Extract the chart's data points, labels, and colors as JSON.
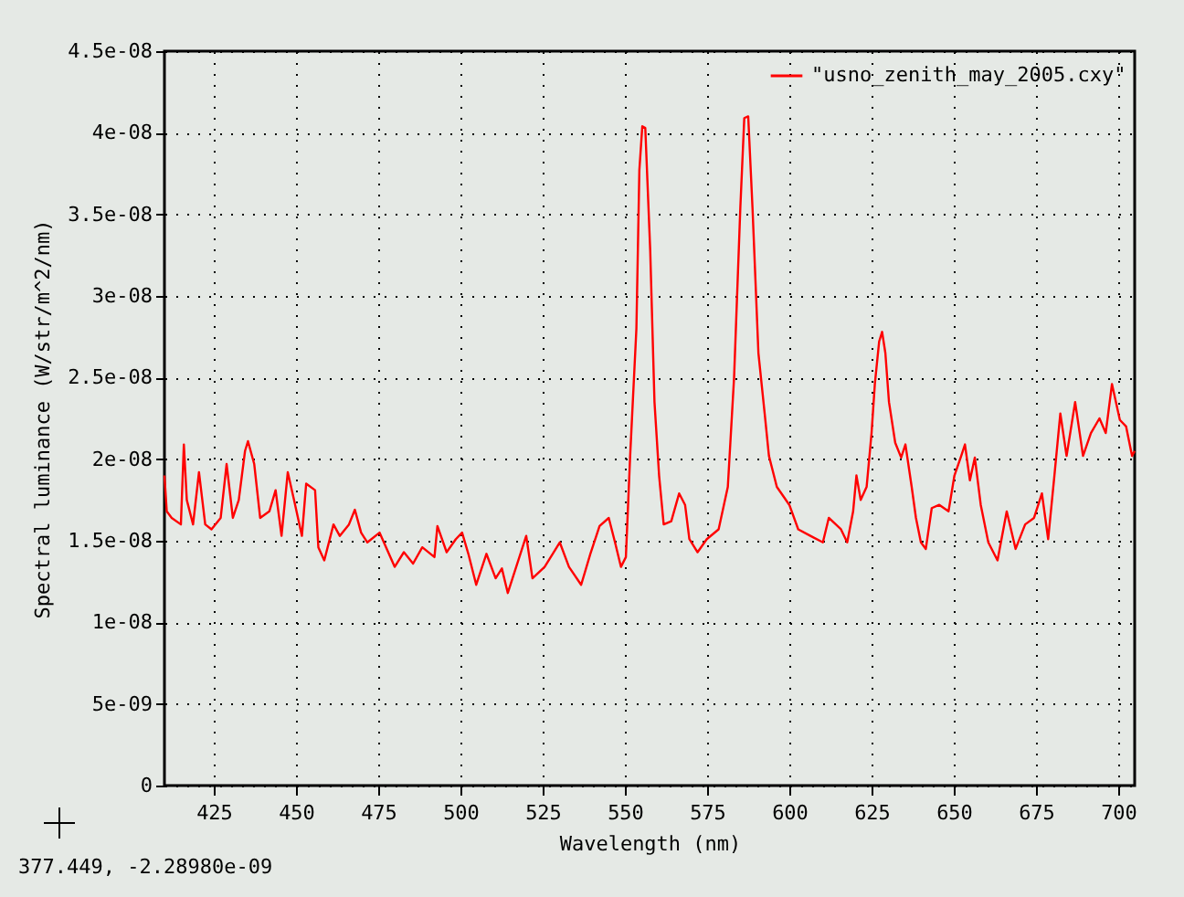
{
  "chart_data": {
    "type": "line",
    "xlabel": "Wavelength (nm)",
    "ylabel": "Spectral luminance (W/str/m^2/nm)",
    "annotations": [
      "377.449, -2.28980e-09"
    ],
    "x": [
      410,
      410.7,
      412.2,
      415.0,
      415.9,
      416.8,
      418.7,
      420.5,
      422.4,
      424.3,
      427.1,
      428.9,
      430.8,
      432.6,
      434.5,
      435.4,
      437.3,
      439.1,
      441.9,
      443.8,
      445.6,
      447.5,
      449.4,
      451.8,
      453.1,
      455.8,
      456.8,
      458.6,
      461.4,
      463.3,
      466.1,
      467.9,
      469.8,
      471.7,
      475.4,
      480.0,
      482.8,
      485.6,
      488.4,
      492.1,
      493.0,
      495.8,
      498.6,
      500.5,
      502.4,
      504.8,
      507.9,
      510.7,
      512.6,
      514.4,
      520.0,
      521.9,
      525.6,
      530.2,
      533.0,
      536.7,
      539.5,
      542.3,
      545.1,
      547.0,
      548.8,
      550.3,
      551.6,
      553.5,
      554.4,
      555.3,
      556.2,
      557.7,
      559.0,
      560.4,
      561.8,
      564.1,
      566.5,
      568.3,
      569.6,
      572.1,
      574.9,
      578.5,
      581.3,
      583.2,
      585.1,
      586.3,
      587.5,
      588.8,
      590.6,
      592.5,
      593.8,
      596.2,
      600.0,
      602.7,
      606.4,
      610.2,
      612.0,
      615.7,
      617.6,
      619.4,
      620.4,
      621.7,
      623.5,
      625.0,
      626.0,
      627.3,
      628.2,
      629.2,
      630.3,
      632.2,
      634.0,
      635.3,
      637.2,
      638.5,
      640.0,
      641.5,
      643.3,
      645.6,
      648.4,
      650.2,
      652.1,
      653.4,
      654.9,
      656.4,
      658.2,
      660.5,
      663.3,
      666.1,
      668.8,
      671.7,
      674.4,
      676.8,
      678.7,
      680.6,
      682.4,
      684.3,
      686.9,
      689.3,
      691.7,
      694.3,
      696.2,
      698.1,
      700.5,
      702.4,
      704.2,
      705
    ],
    "series": [
      {
        "name": "\"usno_zenith_may_2005.cxy\"",
        "color": "#ff0000",
        "values": [
          1.9e-08,
          1.68e-08,
          1.64e-08,
          1.6e-08,
          2.09e-08,
          1.75e-08,
          1.6e-08,
          1.92e-08,
          1.6e-08,
          1.57e-08,
          1.64e-08,
          1.97e-08,
          1.64e-08,
          1.75e-08,
          2.05e-08,
          2.11e-08,
          1.97e-08,
          1.64e-08,
          1.68e-08,
          1.81e-08,
          1.53e-08,
          1.92e-08,
          1.75e-08,
          1.53e-08,
          1.85e-08,
          1.81e-08,
          1.46e-08,
          1.38e-08,
          1.6e-08,
          1.53e-08,
          1.6e-08,
          1.69e-08,
          1.55e-08,
          1.49e-08,
          1.55e-08,
          1.34e-08,
          1.43e-08,
          1.36e-08,
          1.46e-08,
          1.4e-08,
          1.59e-08,
          1.43e-08,
          1.51e-08,
          1.55e-08,
          1.42e-08,
          1.23e-08,
          1.42e-08,
          1.27e-08,
          1.33e-08,
          1.18e-08,
          1.53e-08,
          1.27e-08,
          1.34e-08,
          1.49e-08,
          1.34e-08,
          1.23e-08,
          1.42e-08,
          1.59e-08,
          1.64e-08,
          1.49e-08,
          1.34e-08,
          1.4e-08,
          2.02e-08,
          2.8e-08,
          3.77e-08,
          4.04e-08,
          4.03e-08,
          3.28e-08,
          2.35e-08,
          1.9e-08,
          1.6e-08,
          1.62e-08,
          1.79e-08,
          1.72e-08,
          1.51e-08,
          1.43e-08,
          1.51e-08,
          1.57e-08,
          1.83e-08,
          2.5e-08,
          3.54e-08,
          4.09e-08,
          4.1e-08,
          3.54e-08,
          2.65e-08,
          2.28e-08,
          2.02e-08,
          1.83e-08,
          1.72e-08,
          1.57e-08,
          1.53e-08,
          1.49e-08,
          1.64e-08,
          1.57e-08,
          1.49e-08,
          1.68e-08,
          1.9e-08,
          1.75e-08,
          1.83e-08,
          2.16e-08,
          2.46e-08,
          2.72e-08,
          2.78e-08,
          2.65e-08,
          2.35e-08,
          2.1e-08,
          2.01e-08,
          2.09e-08,
          1.83e-08,
          1.64e-08,
          1.49e-08,
          1.45e-08,
          1.7e-08,
          1.72e-08,
          1.68e-08,
          1.9e-08,
          2.01e-08,
          2.09e-08,
          1.87e-08,
          2.01e-08,
          1.72e-08,
          1.49e-08,
          1.38e-08,
          1.68e-08,
          1.45e-08,
          1.6e-08,
          1.64e-08,
          1.79e-08,
          1.51e-08,
          1.9e-08,
          2.28e-08,
          2.02e-08,
          2.35e-08,
          2.02e-08,
          2.16e-08,
          2.25e-08,
          2.16e-08,
          2.46e-08,
          2.24e-08,
          2.2e-08,
          2.02e-08,
          2.05e-08
        ]
      }
    ],
    "xlim": [
      410,
      705
    ],
    "ylim": [
      0,
      4.5e-08
    ],
    "xticks": [
      425,
      450,
      475,
      500,
      525,
      550,
      575,
      600,
      625,
      650,
      675,
      700
    ],
    "yticks": [
      0,
      {
        "value": 5e-09,
        "label": "5e-09"
      },
      {
        "value": 1e-08,
        "label": "1e-08"
      },
      {
        "value": 1.5e-08,
        "label": "1.5e-08"
      },
      {
        "value": 2e-08,
        "label": "2e-08"
      },
      {
        "value": 2.5e-08,
        "label": "2.5e-08"
      },
      {
        "value": 3e-08,
        "label": "3e-08"
      },
      {
        "value": 3.5e-08,
        "label": "3.5e-08"
      },
      {
        "value": 4e-08,
        "label": "4e-08"
      },
      {
        "value": 4.5e-08,
        "label": "4.5e-08"
      }
    ],
    "grid": true,
    "legend": "top right"
  }
}
